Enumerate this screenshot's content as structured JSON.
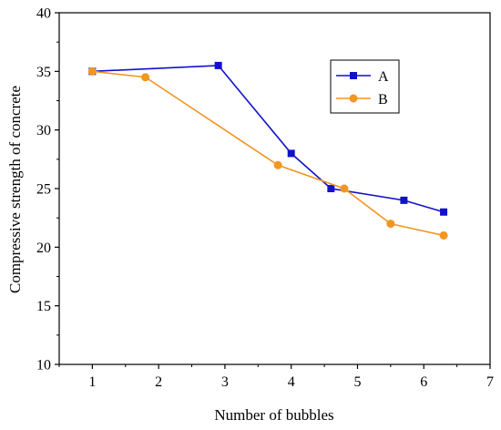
{
  "chart_data": {
    "type": "line",
    "title": "",
    "xlabel": "Number of bubbles",
    "ylabel": "Compressive strength of concrete",
    "xlim": [
      0.5,
      7
    ],
    "ylim": [
      10,
      40
    ],
    "xticks": [
      1,
      2,
      3,
      4,
      5,
      6,
      7
    ],
    "yticks": [
      10,
      15,
      20,
      25,
      30,
      35,
      40
    ],
    "grid": false,
    "legend_position": "top-right",
    "series": [
      {
        "name": "A",
        "color": "#1111cc",
        "marker": "square",
        "x": [
          1,
          2.9,
          4,
          4.6,
          5.7,
          6.3
        ],
        "y": [
          35,
          35.5,
          28,
          25,
          24,
          23
        ]
      },
      {
        "name": "B",
        "color": "#f39521",
        "marker": "circle",
        "x": [
          1,
          1.8,
          3.8,
          4.8,
          5.5,
          6.3
        ],
        "y": [
          35,
          34.5,
          27,
          25,
          22,
          21
        ]
      }
    ]
  }
}
